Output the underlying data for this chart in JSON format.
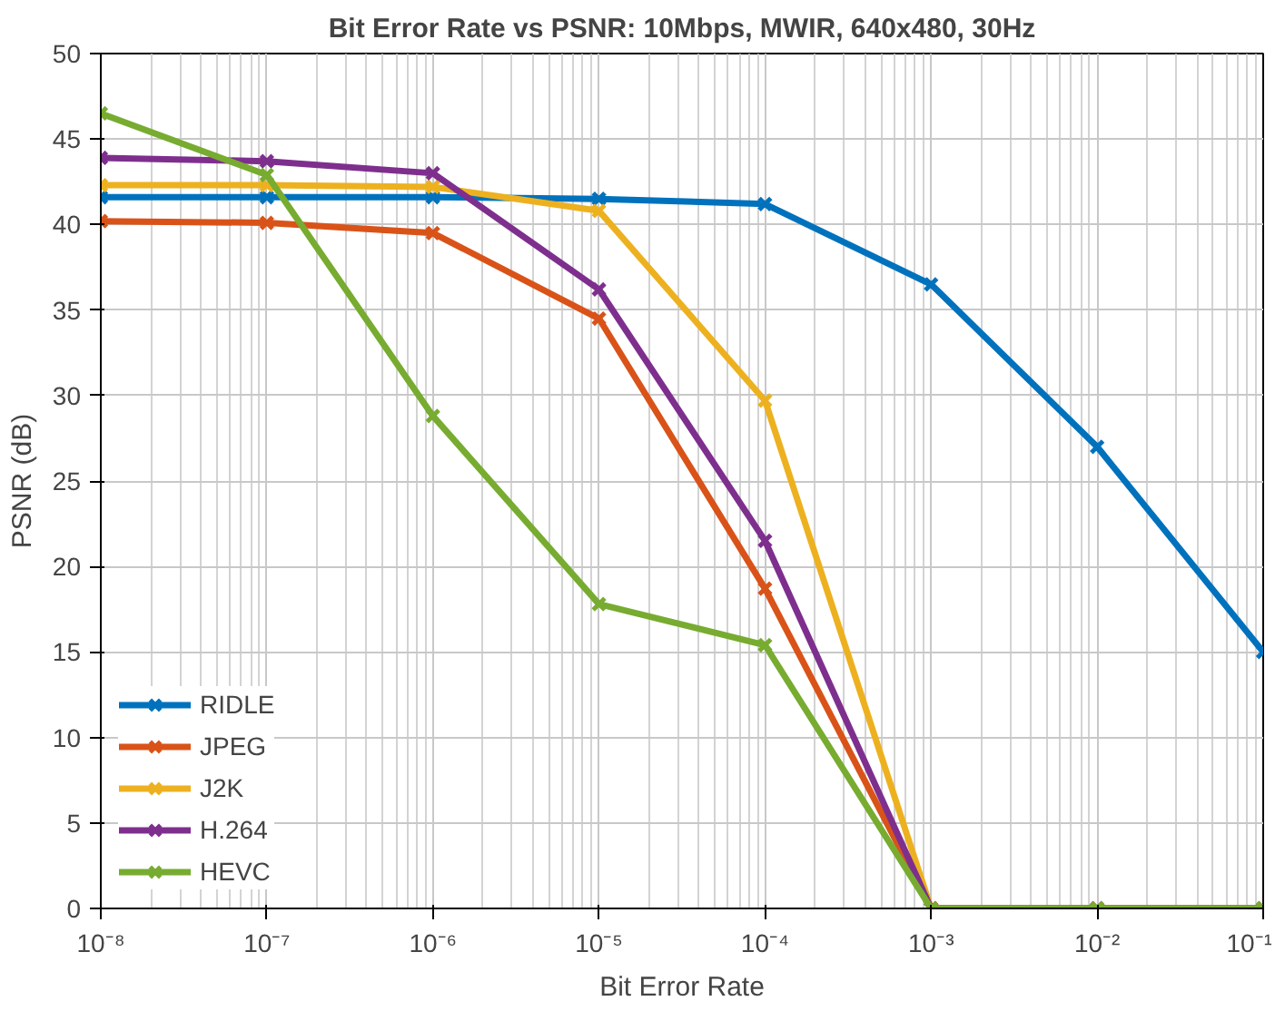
{
  "chart_data": {
    "type": "line",
    "title": "Bit Error Rate vs PSNR: 10Mbps, MWIR, 640x480, 30Hz",
    "xlabel": "Bit Error Rate",
    "ylabel": "PSNR (dB)",
    "log": "x",
    "x": [
      1e-08,
      1e-07,
      1e-06,
      1e-05,
      0.0001,
      0.001,
      0.01,
      0.1
    ],
    "xlim": [
      1e-08,
      0.1
    ],
    "xticks": [
      {
        "value": 1e-08,
        "label": "10⁻⁸"
      },
      {
        "value": 1e-07,
        "label": "10⁻⁷"
      },
      {
        "value": 1e-06,
        "label": "10⁻⁶"
      },
      {
        "value": 1e-05,
        "label": "10⁻⁵"
      },
      {
        "value": 0.0001,
        "label": "10⁻⁴"
      },
      {
        "value": 0.001,
        "label": "10⁻³"
      },
      {
        "value": 0.01,
        "label": "10⁻²"
      },
      {
        "value": 0.1,
        "label": "10⁻¹"
      }
    ],
    "ylim": [
      0,
      50
    ],
    "yticks": [
      0,
      5,
      10,
      15,
      20,
      25,
      30,
      35,
      40,
      45,
      50
    ],
    "grid": true,
    "legend": "bottom left",
    "marker": "cross",
    "line_style": "solid",
    "series": [
      {
        "name": "RIDLE",
        "color": "#0072bd",
        "values": [
          41.6,
          41.6,
          41.6,
          41.5,
          41.2,
          36.5,
          27,
          15
        ]
      },
      {
        "name": "JPEG",
        "color": "#d95319",
        "values": [
          40.2,
          40.1,
          39.5,
          34.5,
          18.7,
          0,
          0,
          0
        ]
      },
      {
        "name": "J2K",
        "color": "#edb120",
        "values": [
          42.3,
          42.3,
          42.2,
          40.8,
          29.7,
          0,
          0,
          0
        ]
      },
      {
        "name": "H.264",
        "color": "#7e2f8e",
        "values": [
          43.9,
          43.7,
          43.0,
          36.2,
          21.5,
          0,
          0,
          0
        ]
      },
      {
        "name": "HEVC",
        "color": "#77ac30",
        "values": [
          46.5,
          42.9,
          28.8,
          17.8,
          15.4,
          0,
          0,
          0
        ]
      }
    ]
  }
}
